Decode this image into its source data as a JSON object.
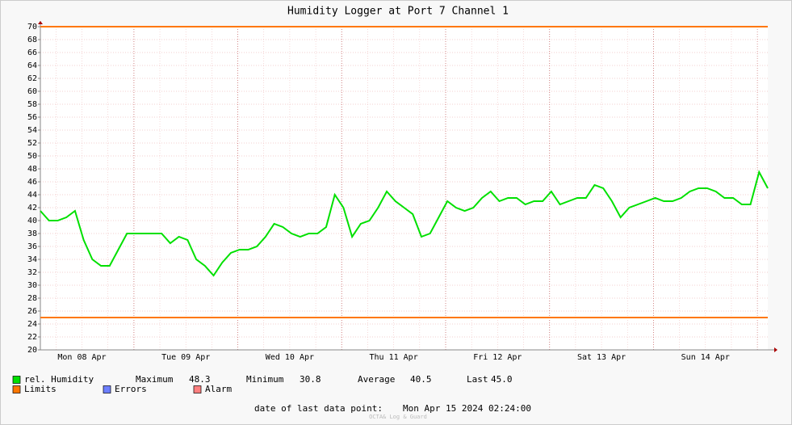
{
  "chart_data": {
    "type": "line",
    "title": "Humidity Logger at Port 7 Channel 1",
    "series": [
      {
        "name": "rel. Humidity",
        "color": "#00e000",
        "values": [
          41.5,
          40,
          40,
          40.5,
          41.5,
          37,
          34,
          33,
          33,
          35.5,
          38,
          38,
          38,
          38,
          38,
          36.5,
          37.5,
          37,
          34,
          33,
          31.5,
          33.5,
          35,
          35.5,
          35.5,
          36,
          37.5,
          39.5,
          39,
          38,
          37.5,
          38,
          38,
          39,
          44,
          42,
          37.5,
          39.5,
          40,
          42,
          44.5,
          43,
          42,
          41,
          37.5,
          38,
          40.5,
          43,
          42,
          41.5,
          42,
          43.5,
          44.5,
          43,
          43.5,
          43.5,
          42.5,
          43,
          43,
          44.5,
          42.5,
          43,
          43.5,
          43.5,
          45.5,
          45,
          43,
          40.5,
          42,
          42.5,
          43,
          43.5,
          43,
          43,
          43.5,
          44.5,
          45,
          45,
          44.5,
          43.5,
          43.5,
          42.5,
          42.5,
          47.5,
          45
        ]
      }
    ],
    "limits": {
      "name": "Limits",
      "color": "#ff7700",
      "values": [
        70,
        25
      ]
    },
    "legend_extra": [
      {
        "name": "Errors",
        "color": "#6d7fff"
      },
      {
        "name": "Alarm",
        "color": "#ff7f7f"
      }
    ],
    "stats": [
      {
        "name": "Maximum",
        "value": 48.3
      },
      {
        "name": "Minimum",
        "value": 30.8
      },
      {
        "name": "Average",
        "value": 40.5
      },
      {
        "name": "Last",
        "value": {
          "value": 45,
          "label": "45.0"
        }
      }
    ],
    "last_point_label": "date of last data point:",
    "last_point": "Mon Apr 15 2024 02:24:00",
    "watermark": "OCTA& Log & Guard",
    "xlim": [
      0,
      84
    ],
    "xticks": [
      {
        "value": 4.8,
        "label": "Mon 08 Apr"
      },
      {
        "value": 16.8,
        "label": "Tue 09 Apr"
      },
      {
        "value": 28.8,
        "label": "Wed 10 Apr"
      },
      {
        "value": 40.8,
        "label": "Thu 11 Apr"
      },
      {
        "value": 52.8,
        "label": "Fri 12 Apr"
      },
      {
        "value": 64.8,
        "label": "Sat 13 Apr"
      },
      {
        "value": 76.8,
        "label": "Sun 14 Apr"
      }
    ],
    "ylim": [
      20,
      70
    ],
    "yticks": [
      20,
      22,
      24,
      26,
      28,
      30,
      32,
      34,
      36,
      38,
      40,
      42,
      44,
      46,
      48,
      50,
      52,
      54,
      56,
      58,
      60,
      62,
      64,
      66,
      68,
      70
    ],
    "grid": true
  }
}
